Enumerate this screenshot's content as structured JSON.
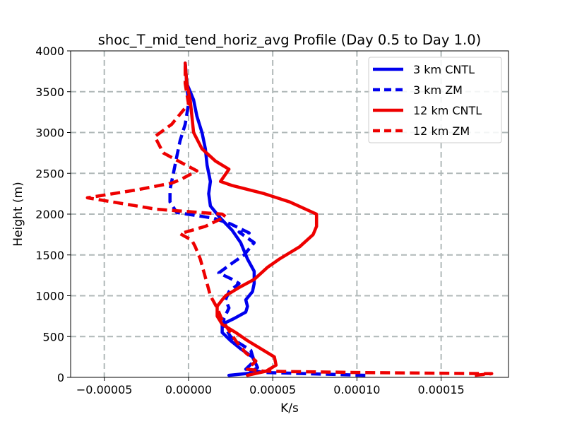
{
  "chart_data": {
    "type": "line",
    "title": "shoc_T_mid_tend_horiz_avg Profile (Day 0.5 to Day 1.0)",
    "xlabel": "K/s",
    "ylabel": "Height (m)",
    "xlim": [
      -7e-05,
      0.00019
    ],
    "ylim": [
      0,
      4000
    ],
    "xticks": [
      -5e-05,
      0.0,
      5e-05,
      0.0001,
      0.00015
    ],
    "xtick_labels": [
      "−0.00005",
      "0.00000",
      "0.00005",
      "0.00010",
      "0.00015"
    ],
    "yticks": [
      0,
      500,
      1000,
      1500,
      2000,
      2500,
      3000,
      3500,
      4000
    ],
    "ytick_labels": [
      "0",
      "500",
      "1000",
      "1500",
      "2000",
      "2500",
      "3000",
      "3500",
      "4000"
    ],
    "grid": true,
    "legend_position": "top-right",
    "series": [
      {
        "name": "3 km CNTL",
        "color": "#0000ee",
        "dash": "solid",
        "points": [
          [
            2.4e-05,
            25
          ],
          [
            3.6e-05,
            50
          ],
          [
            4.1e-05,
            120
          ],
          [
            3.8e-05,
            250
          ],
          [
            3.1e-05,
            350
          ],
          [
            2.5e-05,
            450
          ],
          [
            2e-05,
            550
          ],
          [
            2e-05,
            650
          ],
          [
            2.7e-05,
            720
          ],
          [
            3.4e-05,
            800
          ],
          [
            3.5e-05,
            870
          ],
          [
            3.4e-05,
            950
          ],
          [
            3.8e-05,
            1050
          ],
          [
            3.9e-05,
            1150
          ],
          [
            3.9e-05,
            1300
          ],
          [
            3.5e-05,
            1450
          ],
          [
            3.1e-05,
            1650
          ],
          [
            2.6e-05,
            1800
          ],
          [
            1.9e-05,
            1950
          ],
          [
            1.3e-05,
            2100
          ],
          [
            1.2e-05,
            2250
          ],
          [
            1.3e-05,
            2400
          ],
          [
            1.1e-05,
            2600
          ],
          [
            1e-05,
            2800
          ],
          [
            8e-06,
            3000
          ],
          [
            5e-06,
            3200
          ],
          [
            3e-06,
            3400
          ],
          [
            -1e-06,
            3600
          ],
          [
            -2e-06,
            3850
          ]
        ]
      },
      {
        "name": "3 km ZM",
        "color": "#0000ee",
        "dash": "dashed",
        "points": [
          [
            0.000105,
            25
          ],
          [
            4.5e-05,
            60
          ],
          [
            3.4e-05,
            100
          ],
          [
            3.9e-05,
            200
          ],
          [
            3.7e-05,
            330
          ],
          [
            3e-05,
            420
          ],
          [
            2.5e-05,
            500
          ],
          [
            2.2e-05,
            600
          ],
          [
            2.1e-05,
            650
          ],
          [
            2.1e-05,
            720
          ],
          [
            2.4e-05,
            850
          ],
          [
            2.2e-05,
            950
          ],
          [
            2.4e-05,
            1050
          ],
          [
            3e-05,
            1150
          ],
          [
            2.6e-05,
            1200
          ],
          [
            1.8e-05,
            1280
          ],
          [
            2.6e-05,
            1400
          ],
          [
            3.3e-05,
            1500
          ],
          [
            3.9e-05,
            1650
          ],
          [
            3e-05,
            1780
          ],
          [
            3.6e-05,
            1770
          ],
          [
            2.5e-05,
            1880
          ],
          [
            1.5e-05,
            1950
          ],
          [
            -7e-06,
            2020
          ],
          [
            -1.1e-05,
            2150
          ],
          [
            -1.1e-05,
            2300
          ],
          [
            -9e-06,
            2500
          ],
          [
            -7e-06,
            2700
          ],
          [
            -5e-06,
            2900
          ],
          [
            -2e-06,
            3100
          ],
          [
            0.0,
            3350
          ],
          [
            -1e-06,
            3600
          ],
          [
            -2e-06,
            3850
          ]
        ]
      },
      {
        "name": "12 km CNTL",
        "color": "#ee0000",
        "dash": "solid",
        "points": [
          [
            3.5e-05,
            25
          ],
          [
            4.6e-05,
            75
          ],
          [
            5.2e-05,
            150
          ],
          [
            5.1e-05,
            250
          ],
          [
            4.3e-05,
            350
          ],
          [
            3.5e-05,
            450
          ],
          [
            2.8e-05,
            550
          ],
          [
            2e-05,
            650
          ],
          [
            1.7e-05,
            750
          ],
          [
            1.7e-05,
            870
          ],
          [
            2e-05,
            950
          ],
          [
            2.2e-05,
            1000
          ],
          [
            3e-05,
            1100
          ],
          [
            3.9e-05,
            1200
          ],
          [
            4.7e-05,
            1350
          ],
          [
            5.4e-05,
            1450
          ],
          [
            6.6e-05,
            1600
          ],
          [
            7.4e-05,
            1750
          ],
          [
            7.6e-05,
            1850
          ],
          [
            7.6e-05,
            2000
          ],
          [
            6e-05,
            2150
          ],
          [
            4.5e-05,
            2250
          ],
          [
            2.6e-05,
            2350
          ],
          [
            1.9e-05,
            2400
          ],
          [
            2.4e-05,
            2550
          ],
          [
            1.6e-05,
            2650
          ],
          [
            8e-06,
            2800
          ],
          [
            3e-06,
            3000
          ],
          [
            2e-06,
            3200
          ],
          [
            1e-06,
            3400
          ],
          [
            -1e-06,
            3600
          ],
          [
            -2e-06,
            3850
          ]
        ]
      },
      {
        "name": "12 km ZM",
        "color": "#ee0000",
        "dash": "dashed",
        "points": [
          [
            0.00017,
            25
          ],
          [
            0.00018,
            45
          ],
          [
            0.0001,
            60
          ],
          [
            4.5e-05,
            75
          ],
          [
            3.5e-05,
            100
          ],
          [
            4e-05,
            200
          ],
          [
            3.4e-05,
            300
          ],
          [
            2.8e-05,
            450
          ],
          [
            2e-05,
            700
          ],
          [
            1.7e-05,
            850
          ],
          [
            1.3e-05,
            1000
          ],
          [
            1.1e-05,
            1150
          ],
          [
            9e-06,
            1300
          ],
          [
            7e-06,
            1450
          ],
          [
            4e-06,
            1600
          ],
          [
            2e-06,
            1680
          ],
          [
            -5e-06,
            1760
          ],
          [
            1e-05,
            1850
          ],
          [
            2.2e-05,
            1970
          ],
          [
            2e-05,
            2000
          ],
          [
            -1.9e-05,
            2060
          ],
          [
            -6e-05,
            2200
          ],
          [
            -3e-05,
            2300
          ],
          [
            -1e-05,
            2380
          ],
          [
            -5e-06,
            2420
          ],
          [
            5e-06,
            2530
          ],
          [
            -6e-06,
            2650
          ],
          [
            -1.5e-05,
            2750
          ],
          [
            -2e-05,
            2950
          ],
          [
            -1e-05,
            3100
          ],
          [
            0.0,
            3350
          ],
          [
            -2e-06,
            3600
          ],
          [
            -2e-06,
            3850
          ]
        ]
      }
    ]
  }
}
